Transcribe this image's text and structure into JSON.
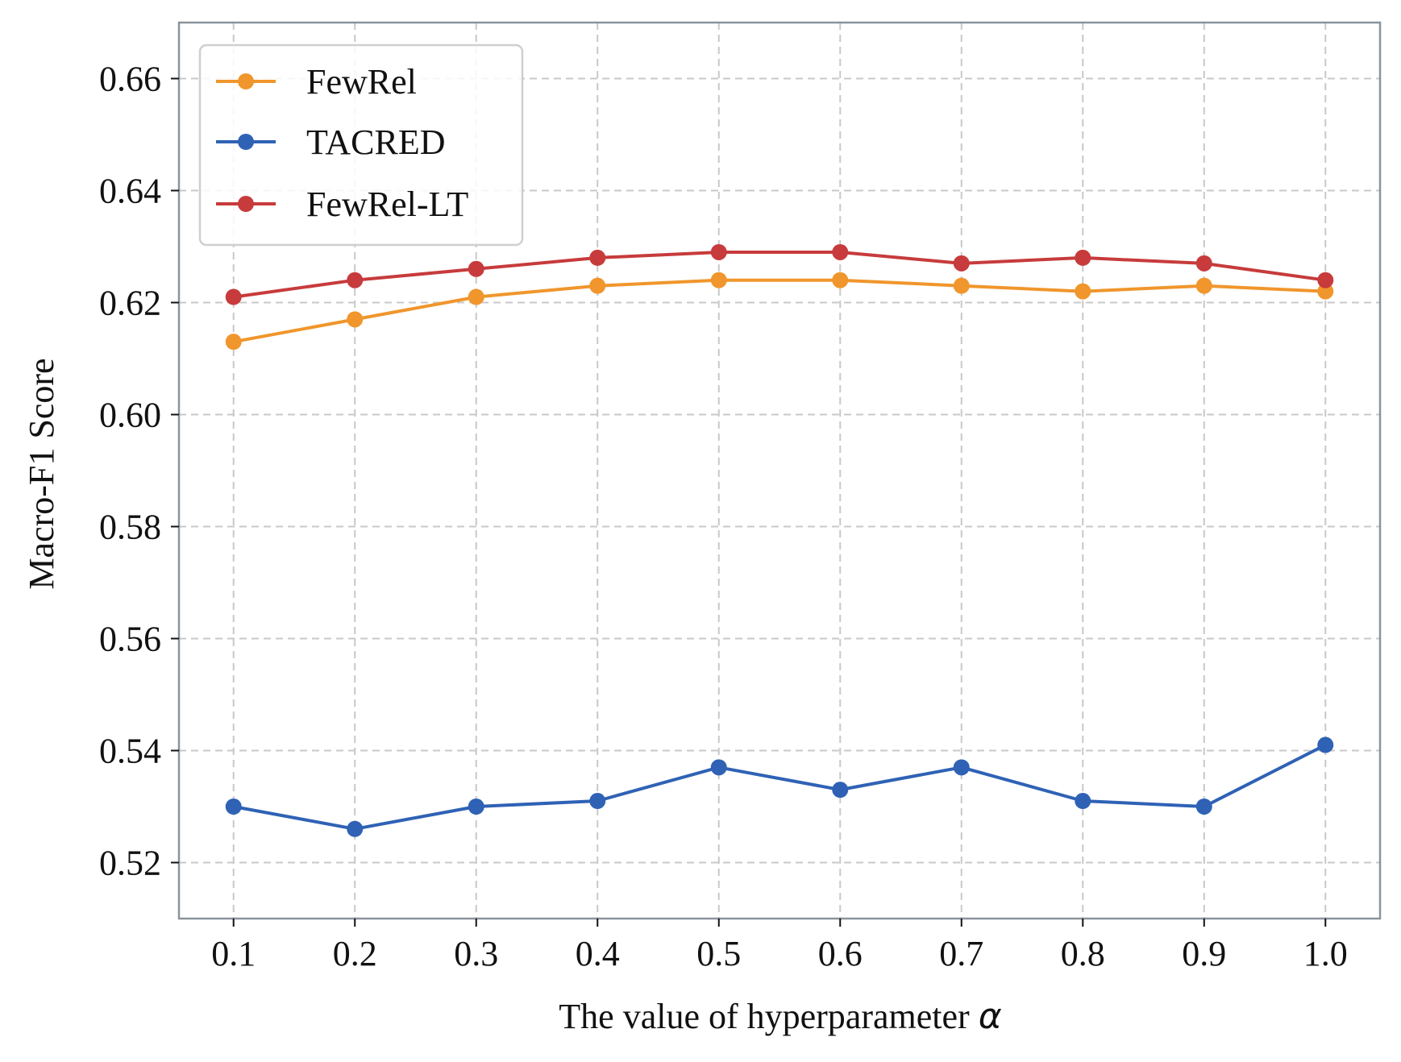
{
  "chart_data": {
    "type": "line",
    "title": "",
    "xlabel_prefix": "The value of hyperparameter ",
    "xlabel_symbol": "α",
    "ylabel": "Macro-F1 Score",
    "x": [
      0.1,
      0.2,
      0.3,
      0.4,
      0.5,
      0.6,
      0.7,
      0.8,
      0.9,
      1.0
    ],
    "x_tick_labels": [
      "0.1",
      "0.2",
      "0.3",
      "0.4",
      "0.5",
      "0.6",
      "0.7",
      "0.8",
      "0.9",
      "1.0"
    ],
    "xlim": [
      0.055,
      1.045
    ],
    "ylim": [
      0.51,
      0.67
    ],
    "y_ticks": [
      0.52,
      0.54,
      0.56,
      0.58,
      0.6,
      0.62,
      0.64,
      0.66
    ],
    "y_tick_labels": [
      "0.52",
      "0.54",
      "0.56",
      "0.58",
      "0.60",
      "0.62",
      "0.64",
      "0.66"
    ],
    "grid": true,
    "legend_position": "top-left",
    "series": [
      {
        "name": "FewRel",
        "color": "#f0962c",
        "values": [
          0.613,
          0.617,
          0.621,
          0.623,
          0.624,
          0.624,
          0.623,
          0.622,
          0.623,
          0.622
        ]
      },
      {
        "name": "TACRED",
        "color": "#2f62b5",
        "values": [
          0.53,
          0.526,
          0.53,
          0.531,
          0.537,
          0.533,
          0.537,
          0.531,
          0.53,
          0.541
        ]
      },
      {
        "name": "FewRel-LT",
        "color": "#c73b3c",
        "values": [
          0.621,
          0.624,
          0.626,
          0.628,
          0.629,
          0.629,
          0.627,
          0.628,
          0.627,
          0.624
        ]
      }
    ]
  }
}
